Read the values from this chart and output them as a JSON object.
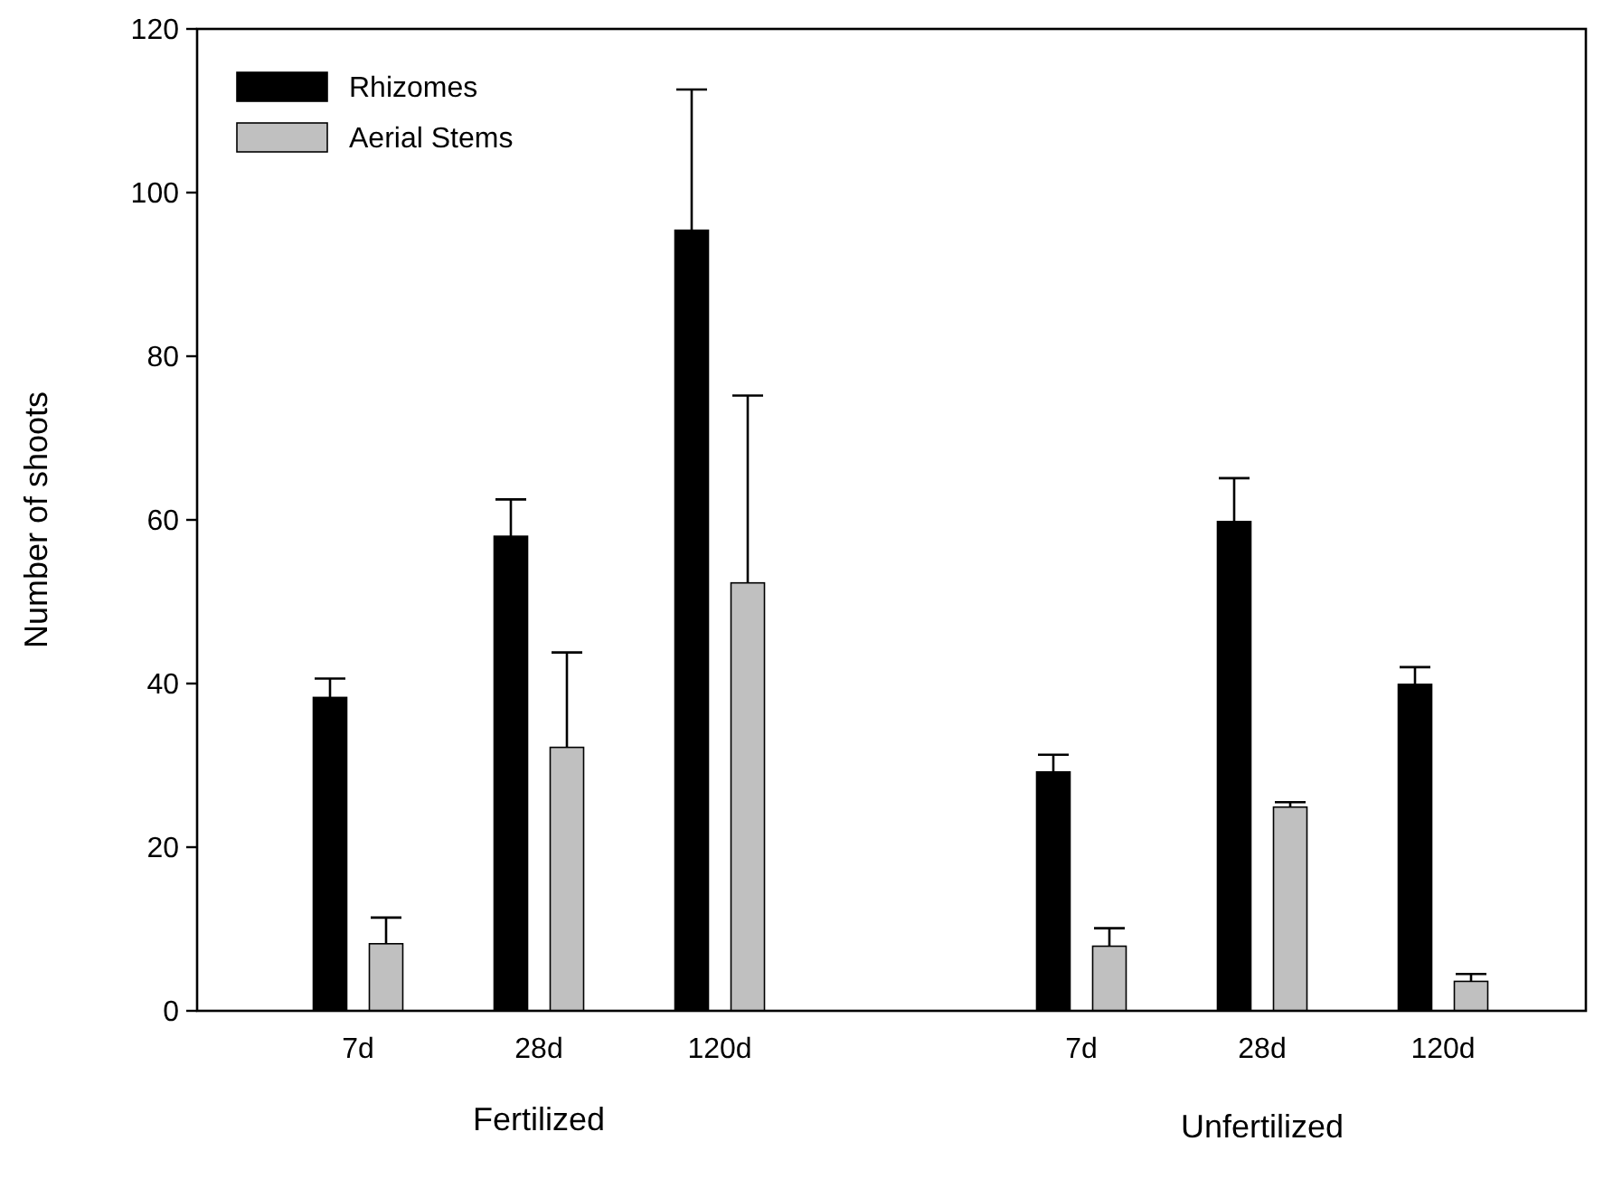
{
  "chart_data": {
    "type": "bar",
    "ylabel": "Number of shoots",
    "categories": [
      "7d",
      "28d",
      "120d",
      null,
      "7d",
      "28d",
      "120d"
    ],
    "series": [
      {
        "name": "Rhizomes",
        "color": "#000000",
        "values": [
          38.3,
          58.0,
          95.4,
          null,
          29.2,
          59.8,
          39.9
        ],
        "errors": [
          2.3,
          4.5,
          17.2,
          null,
          2.1,
          5.3,
          2.1
        ]
      },
      {
        "name": "Aerial Stems",
        "color": "#c0c0c0",
        "values": [
          8.2,
          32.2,
          52.3,
          null,
          7.9,
          24.9,
          3.6
        ],
        "errors": [
          3.2,
          11.6,
          22.9,
          null,
          2.2,
          0.6,
          0.9
        ]
      }
    ],
    "annotations": [
      "Fertilized",
      "Unfertilized"
    ],
    "ylim": [
      0,
      120
    ],
    "yticks": [
      0,
      20,
      40,
      60,
      80,
      100,
      120
    ],
    "grid": false,
    "legend": "top left"
  }
}
